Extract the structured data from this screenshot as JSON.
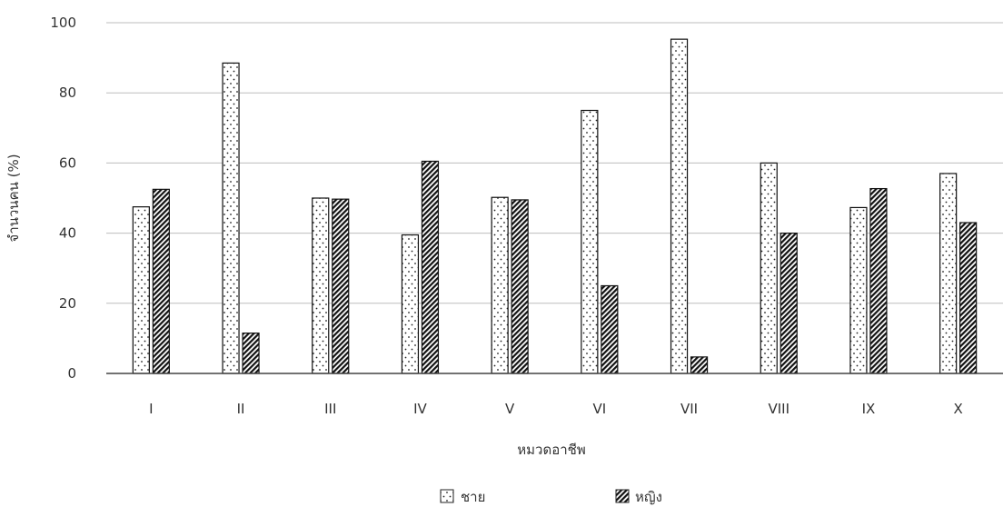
{
  "chart_data": {
    "type": "bar",
    "title": "",
    "xlabel": "หมวดอาชีพ",
    "ylabel": "จำนวนคน (%)",
    "categories": [
      "I",
      "II",
      "III",
      "IV",
      "V",
      "VI",
      "VII",
      "VIII",
      "IX",
      "X"
    ],
    "ylim": [
      0,
      100
    ],
    "yticks": [
      0,
      20,
      40,
      60,
      80,
      100
    ],
    "grid": true,
    "legend_position": "bottom",
    "series": [
      {
        "name": "ชาย",
        "pattern": "dots",
        "values": [
          47.5,
          88.5,
          50.0,
          39.5,
          50.2,
          75.0,
          95.3,
          60.0,
          47.3,
          57.0
        ]
      },
      {
        "name": "หญิง",
        "pattern": "diagonal-hatch",
        "values": [
          52.5,
          11.5,
          49.7,
          60.5,
          49.5,
          25.0,
          4.7,
          40.0,
          52.7,
          43.0
        ]
      }
    ]
  }
}
